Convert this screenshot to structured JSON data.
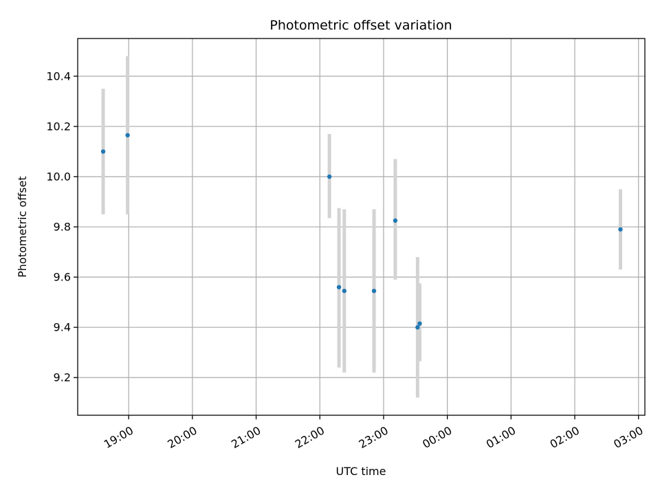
{
  "chart_data": {
    "type": "scatter",
    "title": "Photometric offset variation",
    "xlabel": "UTC time",
    "ylabel": "Photometric offset",
    "x_tick_labels": [
      "19:00",
      "20:00",
      "21:00",
      "22:00",
      "23:00",
      "00:00",
      "01:00",
      "02:00",
      "03:00"
    ],
    "y_tick_labels": [
      "9.2",
      "9.4",
      "9.6",
      "9.8",
      "10.0",
      "10.2",
      "10.4"
    ],
    "xlim": [
      "18:12",
      "03:06"
    ],
    "ylim": [
      9.05,
      10.55
    ],
    "grid": true,
    "error_bars": true,
    "colors": {
      "points": "#1f77b4",
      "error_bars": "#d3d3d3",
      "grid": "#b0b0b0"
    },
    "points": [
      {
        "x": "18:36",
        "y": 10.1,
        "y_low": 9.85,
        "y_high": 10.35
      },
      {
        "x": "18:59",
        "y": 10.165,
        "y_low": 9.85,
        "y_high": 10.48
      },
      {
        "x": "22:09",
        "y": 10.0,
        "y_low": 9.835,
        "y_high": 10.17
      },
      {
        "x": "22:18",
        "y": 9.56,
        "y_low": 9.24,
        "y_high": 9.875
      },
      {
        "x": "22:23",
        "y": 9.545,
        "y_low": 9.22,
        "y_high": 9.87
      },
      {
        "x": "22:51",
        "y": 9.545,
        "y_low": 9.22,
        "y_high": 9.87
      },
      {
        "x": "23:11",
        "y": 9.825,
        "y_low": 9.59,
        "y_high": 10.07
      },
      {
        "x": "23:32",
        "y": 9.4,
        "y_low": 9.12,
        "y_high": 9.68
      },
      {
        "x": "23:34",
        "y": 9.415,
        "y_low": 9.265,
        "y_high": 9.575
      },
      {
        "x": "02:43",
        "y": 9.79,
        "y_low": 9.63,
        "y_high": 9.95
      }
    ]
  }
}
